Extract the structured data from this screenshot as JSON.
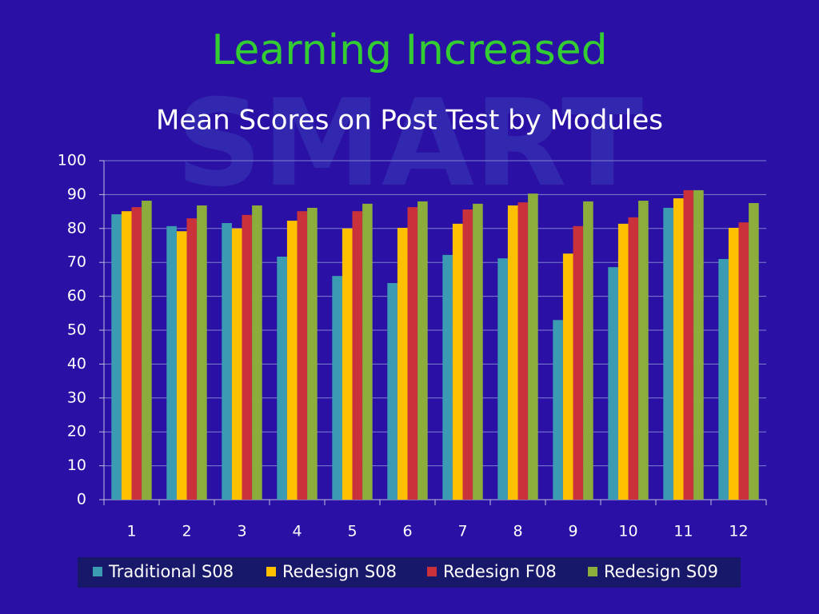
{
  "chart_data": {
    "type": "bar",
    "title": "Learning Increased",
    "subtitle": "Mean Scores on Post Test by Modules",
    "watermark": "SMART",
    "categories": [
      "1",
      "2",
      "3",
      "4",
      "5",
      "6",
      "7",
      "8",
      "9",
      "10",
      "11",
      "12"
    ],
    "series": [
      {
        "name": "Traditional S08",
        "color": "#3b9bb3",
        "values": [
          84.2,
          80.7,
          81.6,
          71.7,
          66,
          63.9,
          72.2,
          71.2,
          53,
          68.6,
          86.1,
          71
        ]
      },
      {
        "name": "Redesign S08",
        "color": "#ffc000",
        "values": [
          85.1,
          79.2,
          80,
          82.3,
          80,
          80.2,
          81.4,
          86.8,
          72.6,
          81.4,
          88.9,
          80.2
        ]
      },
      {
        "name": "Redesign F08",
        "color": "#c9323a",
        "values": [
          86.3,
          83,
          84,
          85.1,
          85.1,
          86.3,
          85.6,
          87.7,
          80.7,
          83.3,
          91.3,
          81.8
        ]
      },
      {
        "name": "Redesign S09",
        "color": "#8cad3c",
        "values": [
          88.2,
          86.8,
          86.8,
          86.1,
          87.3,
          88,
          87.3,
          90.3,
          88,
          88.2,
          91.3,
          87.5
        ]
      }
    ],
    "ylim": [
      0,
      100
    ],
    "yticks": [
      0,
      10,
      20,
      30,
      40,
      50,
      60,
      70,
      80,
      90,
      100
    ],
    "grid": true,
    "legend": "bottom"
  }
}
